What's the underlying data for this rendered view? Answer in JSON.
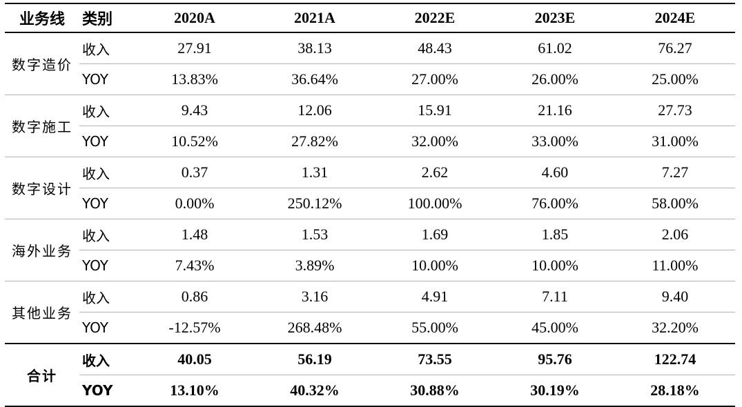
{
  "header": {
    "line_label": "业务线",
    "type_label": "类别",
    "years": [
      "2020A",
      "2021A",
      "2022E",
      "2023E",
      "2024E"
    ]
  },
  "groups": [
    {
      "name": "数字造价",
      "rows": [
        {
          "type": "收入",
          "values": [
            "27.91",
            "38.13",
            "48.43",
            "61.02",
            "76.27"
          ]
        },
        {
          "type": "YOY",
          "values": [
            "13.83%",
            "36.64%",
            "27.00%",
            "26.00%",
            "25.00%"
          ]
        }
      ]
    },
    {
      "name": "数字施工",
      "rows": [
        {
          "type": "收入",
          "values": [
            "9.43",
            "12.06",
            "15.91",
            "21.16",
            "27.73"
          ]
        },
        {
          "type": "YOY",
          "values": [
            "10.52%",
            "27.82%",
            "32.00%",
            "33.00%",
            "31.00%"
          ]
        }
      ]
    },
    {
      "name": "数字设计",
      "rows": [
        {
          "type": "收入",
          "values": [
            "0.37",
            "1.31",
            "2.62",
            "4.60",
            "7.27"
          ]
        },
        {
          "type": "YOY",
          "values": [
            "0.00%",
            "250.12%",
            "100.00%",
            "76.00%",
            "58.00%"
          ]
        }
      ]
    },
    {
      "name": "海外业务",
      "rows": [
        {
          "type": "收入",
          "values": [
            "1.48",
            "1.53",
            "1.69",
            "1.85",
            "2.06"
          ]
        },
        {
          "type": "YOY",
          "values": [
            "7.43%",
            "3.89%",
            "10.00%",
            "10.00%",
            "11.00%"
          ]
        }
      ]
    },
    {
      "name": "其他业务",
      "rows": [
        {
          "type": "收入",
          "values": [
            "0.86",
            "3.16",
            "4.91",
            "7.11",
            "9.40"
          ]
        },
        {
          "type": "YOY",
          "values": [
            "-12.57%",
            "268.48%",
            "55.00%",
            "45.00%",
            "32.20%"
          ]
        }
      ]
    },
    {
      "name": "合计",
      "rows": [
        {
          "type": "收入",
          "values": [
            "40.05",
            "56.19",
            "73.55",
            "95.76",
            "122.74"
          ]
        },
        {
          "type": "YOY",
          "values": [
            "13.10%",
            "40.32%",
            "30.88%",
            "30.19%",
            "28.18%"
          ]
        }
      ]
    }
  ]
}
